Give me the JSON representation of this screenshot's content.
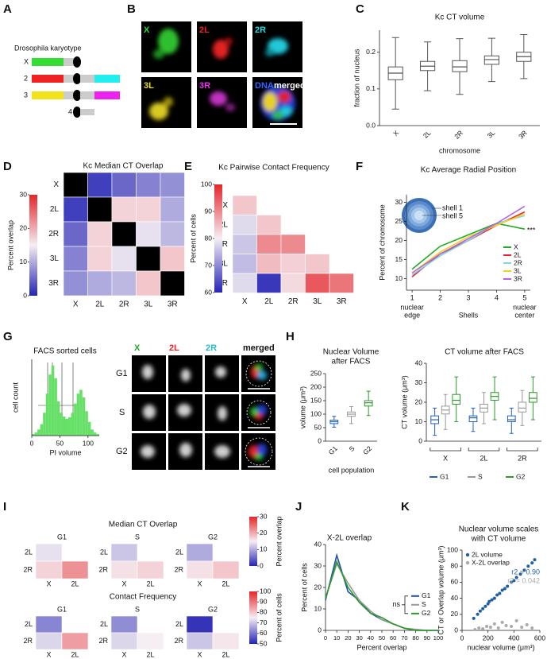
{
  "panel_labels": [
    "A",
    "B",
    "C",
    "D",
    "E",
    "F",
    "G",
    "H",
    "I",
    "J",
    "K"
  ],
  "karyotype": {
    "title": "Drosophila karyotype",
    "chromosomes": [
      "X",
      "2",
      "3",
      "4"
    ]
  },
  "micrographs_B": {
    "labels": [
      "X",
      "2L",
      "2R",
      "3L",
      "3R",
      "DNA",
      "merged"
    ]
  },
  "micrographs_G": {
    "columns": [
      "X",
      "2L",
      "2R",
      "merged"
    ],
    "rows": [
      "G1",
      "S",
      "G2"
    ]
  },
  "chart_data": [
    {
      "type": "box",
      "title": "Kc CT volume",
      "y_label": "fraction of nucleus",
      "x_label": "chromosome",
      "categories": [
        "X",
        "2L",
        "2R",
        "3L",
        "3R"
      ],
      "values": [
        [
          0.045,
          0.125,
          0.143,
          0.16,
          0.24
        ],
        [
          0.095,
          0.15,
          0.162,
          0.175,
          0.228
        ],
        [
          0.085,
          0.147,
          0.16,
          0.177,
          0.237
        ],
        [
          0.12,
          0.167,
          0.18,
          0.19,
          0.238
        ],
        [
          0.128,
          0.175,
          0.188,
          0.2,
          0.248
        ]
      ],
      "color": "#555555",
      "ylim": [
        0,
        0.26
      ],
      "yticks": [
        {
          "value": 0,
          "label": "0.0"
        },
        {
          "value": 0.1,
          "label": "0.1"
        },
        {
          "value": 0.2,
          "label": "0.2"
        }
      ]
    },
    {
      "type": "heatmap",
      "title": "Kc Median CT Overlap",
      "colorbar_label": "Percent overlap",
      "rows": [
        "X",
        "2L",
        "2R",
        "3L",
        "3R"
      ],
      "columns": [
        "X",
        "2L",
        "2R",
        "3L",
        "3R"
      ],
      "matrix": [
        [
          null,
          2,
          5,
          7,
          8
        ],
        [
          2,
          null,
          17,
          17,
          10
        ],
        [
          5,
          17,
          null,
          14,
          11
        ],
        [
          7,
          17,
          14,
          null,
          18
        ],
        [
          8,
          10,
          11,
          18,
          null
        ]
      ],
      "clim": [
        0,
        30
      ],
      "cticks": [
        0,
        10,
        20,
        30
      ],
      "colormap": [
        "#2424b4",
        "#f5eef3",
        "#e4262a"
      ],
      "diagonal_color": "#000000"
    },
    {
      "type": "heatmap",
      "title": "Kc Pairwise Contact Frequency",
      "colorbar_label": "Percent of cells",
      "rows": [
        "X",
        "2L",
        "2R",
        "3L",
        "3R"
      ],
      "columns": [
        "X",
        "2L",
        "2R",
        "3L",
        "3R"
      ],
      "matrix": [
        [
          84,
          null,
          null,
          null,
          null
        ],
        [
          78,
          84,
          null,
          null,
          null
        ],
        [
          76,
          90,
          90,
          null,
          null
        ],
        [
          75,
          85,
          83,
          84,
          null
        ],
        [
          78,
          62,
          82,
          95,
          92
        ]
      ],
      "clim": [
        60,
        100
      ],
      "cticks": [
        60,
        70,
        80,
        90,
        100
      ],
      "colormap": [
        "#2424b4",
        "#f5eef3",
        "#e4262a"
      ]
    },
    {
      "type": "line",
      "title": "Kc Average Radial Position",
      "y_label": "Percent of chromosome",
      "x_label": "Shells",
      "x": [
        1,
        2,
        3,
        4,
        5
      ],
      "xlim": [
        0.8,
        5.2
      ],
      "xticks": [
        1,
        2,
        3,
        4,
        5
      ],
      "x_end_labels": [
        [
          "nuclear",
          "edge"
        ],
        [
          "nuclear",
          "center"
        ]
      ],
      "ylim": [
        7,
        32
      ],
      "yticks": [
        10,
        15,
        20,
        25,
        30
      ],
      "series": [
        {
          "name": "X",
          "color": "#22aa22",
          "values": [
            12.5,
            18.5,
            21.5,
            24.5,
            23
          ]
        },
        {
          "name": "2L",
          "color": "#e8262b",
          "values": [
            10.5,
            16.5,
            20,
            24,
            27.5
          ]
        },
        {
          "name": "2R",
          "color": "#7fd6e0",
          "values": [
            11,
            16,
            20,
            24.5,
            26.5
          ]
        },
        {
          "name": "3L",
          "color": "#f2d21b",
          "values": [
            11.5,
            17,
            21,
            24,
            27
          ]
        },
        {
          "name": "3R",
          "color": "#b366e0",
          "values": [
            11.5,
            16.5,
            20.5,
            24.5,
            29
          ]
        }
      ],
      "annotation": "***",
      "inset_labels": [
        "shell 1",
        "shell 5"
      ],
      "legend": "lower right"
    },
    {
      "type": "histogram",
      "title": "FACS sorted cells",
      "y_label": "cell count",
      "x_label": "PI volume",
      "bins": [
        0,
        5,
        10,
        15,
        20,
        25,
        30,
        35,
        40,
        45,
        50,
        55,
        60,
        65,
        70,
        75,
        80,
        85,
        90,
        95,
        100,
        105,
        110,
        115,
        120
      ],
      "counts": [
        2,
        4,
        8,
        15,
        30,
        55,
        80,
        92,
        75,
        45,
        30,
        25,
        22,
        24,
        30,
        42,
        55,
        60,
        50,
        32,
        18,
        8,
        4,
        2
      ],
      "color": "#66e066",
      "xlim": [
        0,
        120
      ],
      "xticks": [
        0,
        50,
        100
      ],
      "ylim": [
        0,
        100
      ]
    },
    {
      "type": "box",
      "title": [
        "Nuclear Volume",
        "after FACS"
      ],
      "y_label": "volume (μm³)",
      "x_label": "cell population",
      "categories": [
        "G1",
        "S",
        "G2"
      ],
      "values": [
        [
          52,
          65,
          72,
          78,
          92
        ],
        [
          65,
          92,
          100,
          108,
          128
        ],
        [
          95,
          130,
          142,
          150,
          185
        ]
      ],
      "colors": [
        "#2060c0",
        "#999999",
        "#2a9a2a"
      ],
      "ylim": [
        0,
        250
      ],
      "yticks": [
        0,
        50,
        100,
        150,
        200,
        250
      ]
    },
    {
      "type": "grouped_box",
      "title": "CT volume after FACS",
      "y_label": "CT volume (μm³)",
      "categories": [
        "X",
        "2L",
        "2R"
      ],
      "series": [
        {
          "name": "G1",
          "color": "#2060c0",
          "values": [
            [
              3,
              9,
              11,
              13,
              17
            ],
            [
              5,
              10,
              12,
              13,
              17
            ],
            [
              4,
              10,
              11,
              13,
              17
            ]
          ]
        },
        {
          "name": "S",
          "color": "#999999",
          "values": [
            [
              6,
              14,
              16,
              18,
              24
            ],
            [
              9,
              15,
              17,
              19,
              25
            ],
            [
              8,
              15,
              17,
              20,
              26
            ]
          ]
        },
        {
          "name": "G2",
          "color": "#2a9a2a",
          "values": [
            [
              10,
              19,
              21,
              24,
              33
            ],
            [
              11,
              21,
              23,
              25,
              33
            ],
            [
              11,
              20,
              22,
              25,
              33
            ]
          ]
        }
      ],
      "ylim": [
        0,
        40
      ],
      "yticks": [
        0,
        10,
        20,
        30,
        40
      ],
      "legend": "bottom"
    },
    {
      "type": "heatmap_set",
      "title": "Median CT Overlap",
      "colorbar_label": "Percent overlap",
      "rows": [
        "2L",
        "2R"
      ],
      "columns": [
        "X",
        "2L"
      ],
      "panels": [
        {
          "name": "G1",
          "matrix": [
            [
              14,
              null
            ],
            [
              17,
              22
            ]
          ]
        },
        {
          "name": "S",
          "matrix": [
            [
              12,
              null
            ],
            [
              16,
              17
            ]
          ]
        },
        {
          "name": "G2",
          "matrix": [
            [
              10,
              null
            ],
            [
              16,
              18
            ]
          ]
        }
      ],
      "clim": [
        0,
        30
      ],
      "cticks": [
        0,
        10,
        20,
        30
      ],
      "colormap": [
        "#2424b4",
        "#f5eef3",
        "#e4262a"
      ]
    },
    {
      "type": "heatmap_set",
      "title": "Contact Frequency",
      "colorbar_label": "Percent of cells",
      "rows": [
        "2L",
        "2R"
      ],
      "columns": [
        "X",
        "2L"
      ],
      "panels": [
        {
          "name": "G1",
          "matrix": [
            [
              62,
              null
            ],
            [
              72,
              85
            ]
          ]
        },
        {
          "name": "S",
          "matrix": [
            [
              63,
              null
            ],
            [
              72,
              75
            ]
          ]
        },
        {
          "name": "G2",
          "matrix": [
            [
              52,
              null
            ],
            [
              70,
              76
            ]
          ]
        }
      ],
      "clim": [
        50,
        100
      ],
      "cticks": [
        50,
        60,
        70,
        80,
        90,
        100
      ],
      "colormap": [
        "#2424b4",
        "#f5eef3",
        "#e4262a"
      ]
    },
    {
      "type": "line",
      "title": "X-2L overlap",
      "x_label": "Percent overlap",
      "y_label": "Percent of cells",
      "x": [
        0,
        10,
        20,
        30,
        40,
        50,
        60,
        70,
        80,
        90,
        100
      ],
      "xlim": [
        0,
        100
      ],
      "xticks": [
        0,
        10,
        20,
        30,
        40,
        50,
        60,
        70,
        80,
        90,
        100
      ],
      "ylim": [
        0,
        40
      ],
      "yticks": [
        0,
        10,
        20,
        30,
        40
      ],
      "series": [
        {
          "name": "G1",
          "color": "#2050b0",
          "values": [
            14,
            35,
            18,
            14,
            8,
            5,
            3,
            1,
            0,
            0,
            0
          ]
        },
        {
          "name": "S",
          "color": "#999999",
          "values": [
            15,
            31,
            22,
            14,
            9,
            5,
            3,
            1,
            0.5,
            0,
            0
          ]
        },
        {
          "name": "G2",
          "color": "#2a9a2a",
          "values": [
            15,
            32,
            20,
            13,
            8,
            6,
            3,
            1,
            0,
            0,
            0
          ]
        }
      ],
      "annotation": "ns",
      "legend": "right"
    },
    {
      "type": "scatter",
      "title": [
        "Nuclear volume scales",
        "with CT volume"
      ],
      "x_label": "nuclear volume (μm³)",
      "y_label": "CT or Overlap volume (μm³)",
      "xlim": [
        0,
        600
      ],
      "xticks": [
        0,
        200,
        400,
        600
      ],
      "ylim": [
        0,
        100
      ],
      "yticks": [
        0,
        20,
        40,
        60,
        80,
        100
      ],
      "series": [
        {
          "name": "2L volume",
          "color": "#1f5f9f",
          "annotation": "r2 = 0.90",
          "x": [
            90,
            120,
            140,
            160,
            180,
            200,
            210,
            230,
            250,
            270,
            290,
            310,
            330,
            350,
            380,
            400,
            420,
            450,
            480,
            510,
            540,
            560
          ],
          "values": [
            15,
            20,
            24,
            27,
            30,
            33,
            36,
            38,
            40,
            44,
            46,
            50,
            52,
            55,
            60,
            62,
            66,
            70,
            75,
            80,
            84,
            88
          ]
        },
        {
          "name": "X-2L overlap",
          "color": "#aaaaaa",
          "annotation": "r2 = 0.042",
          "x": [
            100,
            130,
            160,
            190,
            220,
            250,
            280,
            310,
            340,
            380,
            420,
            460,
            500,
            540
          ],
          "values": [
            1,
            3,
            2,
            5,
            4,
            8,
            3,
            10,
            6,
            5,
            12,
            4,
            7,
            3
          ]
        }
      ],
      "legend": "upper left"
    }
  ]
}
